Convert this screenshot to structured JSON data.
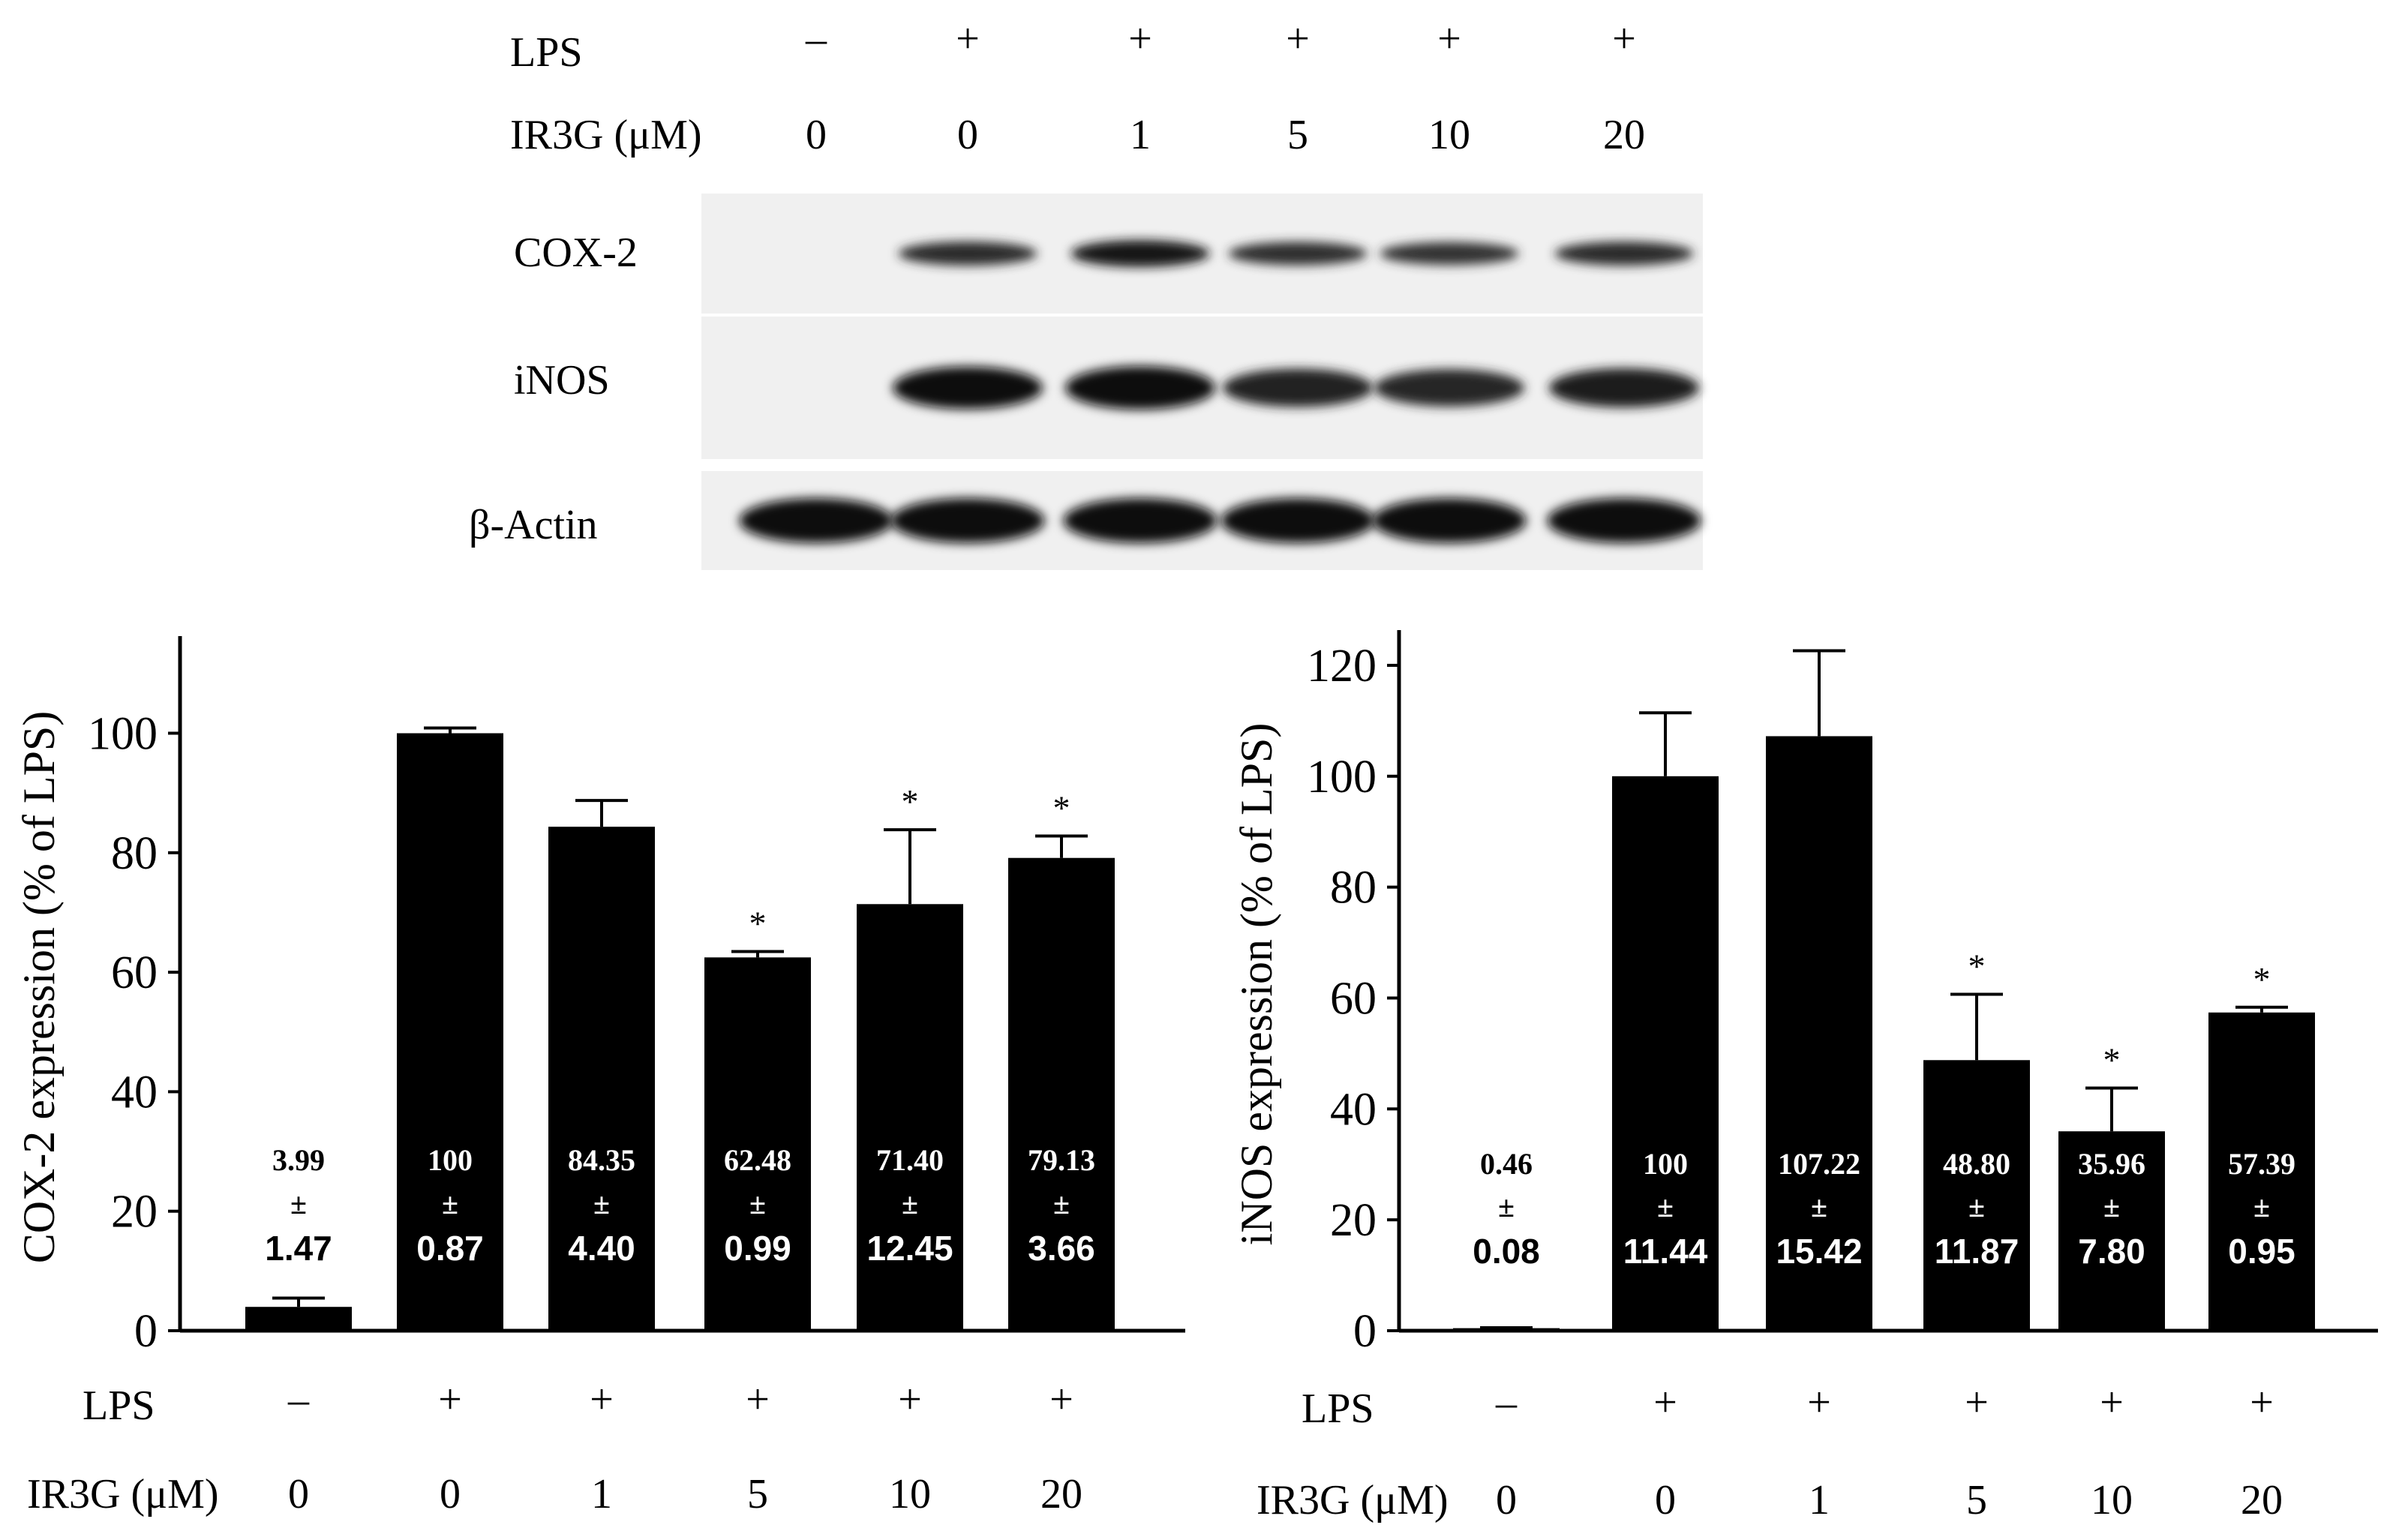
{
  "blot": {
    "header": {
      "lps_label": "LPS",
      "lps_signs": [
        "–",
        "+",
        "+",
        "+",
        "+",
        "+"
      ],
      "ir3g_label": "IR3G (μM)",
      "ir3g_doses": [
        "0",
        "0",
        "1",
        "5",
        "10",
        "20"
      ]
    },
    "rows": [
      {
        "label": "COX-2",
        "bands": [
          0.0,
          0.6,
          0.85,
          0.55,
          0.5,
          0.6
        ]
      },
      {
        "label": "iNOS",
        "bands": [
          0.0,
          0.95,
          1.0,
          0.7,
          0.65,
          0.75
        ]
      },
      {
        "label": "β-Actin",
        "bands": [
          1.0,
          1.0,
          1.0,
          1.0,
          1.0,
          1.0
        ]
      }
    ]
  },
  "chart_data": [
    {
      "type": "bar",
      "ylabel": "COX-2 expression (% of LPS)",
      "ylim": [
        0,
        115
      ],
      "yticks": [
        0,
        20,
        40,
        60,
        80,
        100
      ],
      "categories": [
        "0",
        "0",
        "1",
        "5",
        "10",
        "20"
      ],
      "lps": [
        "–",
        "+",
        "+",
        "+",
        "+",
        "+"
      ],
      "lps_label": "LPS",
      "dose_label": "IR3G (μM)",
      "values": [
        3.99,
        100,
        84.35,
        62.48,
        71.4,
        79.13
      ],
      "errors": [
        1.47,
        0.87,
        4.4,
        0.99,
        12.45,
        3.66
      ],
      "mean_labels": [
        "3.99",
        "100",
        "84.35",
        "62.48",
        "71.40",
        "79.13"
      ],
      "pm": "±",
      "sd_labels": [
        "1.47",
        "0.87",
        "4.40",
        "0.99",
        "12.45",
        "3.66"
      ],
      "significance": [
        "",
        "",
        "",
        "*",
        "*",
        "*"
      ],
      "bar_color": "#000000"
    },
    {
      "type": "bar",
      "ylabel": "iNOS expression (% of LPS)",
      "ylim": [
        0,
        125
      ],
      "yticks": [
        0,
        20,
        40,
        60,
        80,
        100,
        120
      ],
      "categories": [
        "0",
        "0",
        "1",
        "5",
        "10",
        "20"
      ],
      "lps": [
        "–",
        "+",
        "+",
        "+",
        "+",
        "+"
      ],
      "lps_label": "LPS",
      "dose_label": "IR3G (μM)",
      "values": [
        0.46,
        100,
        107.22,
        48.8,
        35.96,
        57.39
      ],
      "errors": [
        0.08,
        11.44,
        15.42,
        11.87,
        7.8,
        0.95
      ],
      "mean_labels": [
        "0.46",
        "100",
        "107.22",
        "48.80",
        "35.96",
        "57.39"
      ],
      "pm": "±",
      "sd_labels": [
        "0.08",
        "11.44",
        "15.42",
        "11.87",
        "7.80",
        "0.95"
      ],
      "significance": [
        "",
        "",
        "",
        "*",
        "*",
        "*"
      ],
      "bar_color": "#000000"
    }
  ]
}
